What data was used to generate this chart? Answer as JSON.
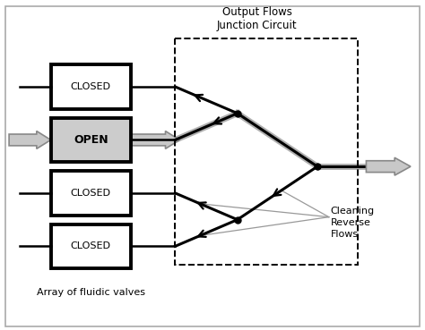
{
  "fig_w": 4.74,
  "fig_h": 3.69,
  "dpi": 100,
  "valve_boxes": [
    {
      "label": "CLOSED",
      "filled": false
    },
    {
      "label": "OPEN",
      "filled": true
    },
    {
      "label": "CLOSED",
      "filled": false
    },
    {
      "label": "CLOSED",
      "filled": false
    }
  ],
  "label_output": "Output Flows\nJunction Circuit",
  "label_array": "Array of fluidic valves",
  "label_cleaning": "Cleaning\nReverse\nFlows"
}
